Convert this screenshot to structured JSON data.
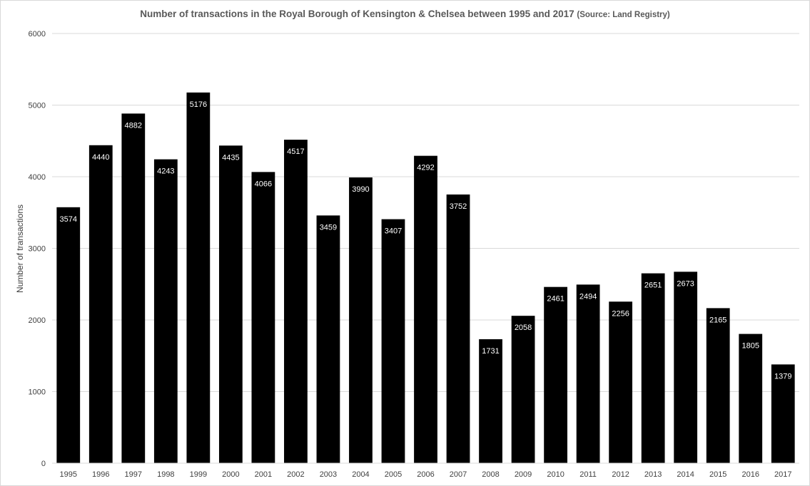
{
  "chart_data": {
    "type": "bar",
    "title": "Number of transactions  in the Royal Borough of Kensington & Chelsea between 1995 and 2017",
    "subtitle": "(Source: Land Registry)",
    "xlabel": "",
    "ylabel": "Number of transactions",
    "ylim": [
      0,
      6000
    ],
    "yticks": [
      0,
      1000,
      2000,
      3000,
      4000,
      5000,
      6000
    ],
    "grid": true,
    "legend": "none",
    "bar_color": "#000000",
    "data_label_color": "#ffffff",
    "categories": [
      "1995",
      "1996",
      "1997",
      "1998",
      "1999",
      "2000",
      "2001",
      "2002",
      "2003",
      "2004",
      "2005",
      "2006",
      "2007",
      "2008",
      "2009",
      "2010",
      "2011",
      "2012",
      "2013",
      "2014",
      "2015",
      "2016",
      "2017"
    ],
    "values": [
      3574,
      4440,
      4882,
      4243,
      5176,
      4435,
      4066,
      4517,
      3459,
      3990,
      3407,
      4292,
      3752,
      1731,
      2058,
      2461,
      2494,
      2256,
      2651,
      2673,
      2165,
      1805,
      1379
    ]
  }
}
